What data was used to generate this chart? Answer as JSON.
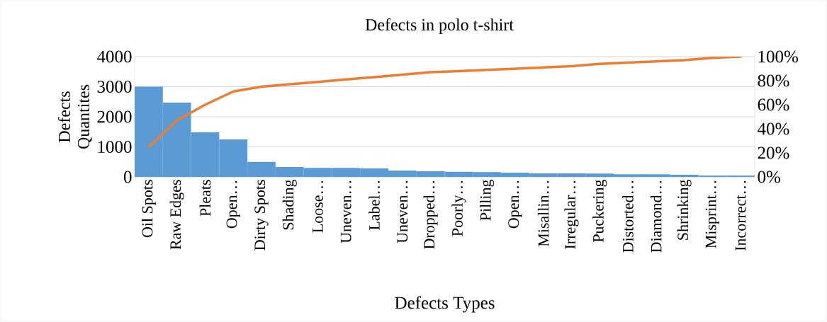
{
  "chart_data": {
    "type": "bar",
    "title": "Defects in polo t-shirt",
    "xlabel": "Defects Types",
    "ylabel": "Defects Quantites",
    "categories": [
      "Oil Spots",
      "Raw Edges",
      "Pleats",
      "Open…",
      "Dirty Spots",
      "Shading",
      "Loose…",
      "Uneven…",
      "Label…",
      "Uneven…",
      "Dropped…",
      "Poorly…",
      "Pilling",
      "Open…",
      "Misallin…",
      "Irregular…",
      "Puckering",
      "Distorted…",
      "Diamond…",
      "Shrinking",
      "Misprint…",
      "Incorrect…"
    ],
    "series": [
      {
        "color": "#5b9bd5",
        "values": [
          3000,
          2470,
          1480,
          1250,
          500,
          330,
          300,
          300,
          280,
          210,
          190,
          170,
          160,
          140,
          120,
          120,
          110,
          90,
          90,
          70,
          50,
          50
        ]
      },
      {
        "type": "line",
        "axis": "y2",
        "color": "#ed7d31",
        "values": [
          25,
          47,
          60,
          71,
          75,
          77,
          79,
          81,
          83,
          85,
          87,
          88,
          89,
          90,
          91,
          92,
          94,
          95,
          96,
          97,
          99,
          100
        ]
      }
    ],
    "ylim": [
      0,
      4000
    ],
    "yticks": [
      0,
      1000,
      2000,
      3000,
      4000
    ],
    "y2lim": [
      0,
      100
    ],
    "y2ticks": [
      {
        "value": 0,
        "label": "0%"
      },
      {
        "value": 20,
        "label": "20%"
      },
      {
        "value": 40,
        "label": "40%"
      },
      {
        "value": 60,
        "label": "60%"
      },
      {
        "value": 80,
        "label": "80%"
      },
      {
        "value": 100,
        "label": "100%"
      }
    ],
    "grid": "y",
    "line_style": "solid"
  }
}
